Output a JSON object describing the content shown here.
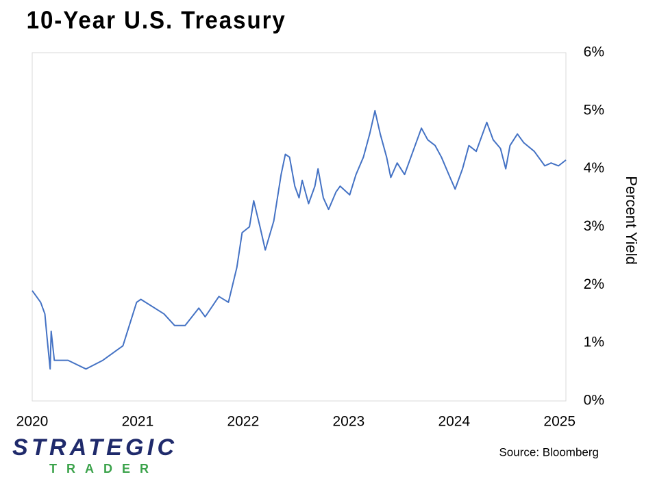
{
  "chart_data": {
    "type": "line",
    "title": "10-Year U.S. Treasury",
    "y_axis_label": "Percent Yield",
    "source": "Source: Bloomberg",
    "logo": {
      "name": "STRATEGIC",
      "tagline": "TRADER"
    },
    "xlim": [
      2020,
      2025.06
    ],
    "xticks": [
      2020,
      2021,
      2022,
      2023,
      2024,
      2025
    ],
    "ylim": [
      0,
      6
    ],
    "yticks": [
      {
        "value": 0,
        "label": "0%"
      },
      {
        "value": 1,
        "label": "1%"
      },
      {
        "value": 2,
        "label": "2%"
      },
      {
        "value": 3,
        "label": "3%"
      },
      {
        "value": 4,
        "label": "4%"
      },
      {
        "value": 5,
        "label": "5%"
      },
      {
        "value": 6,
        "label": "6%"
      }
    ],
    "grid": false,
    "y_axis_side": "right",
    "series": [
      {
        "name": "10-Year U.S. Treasury",
        "color": "#4472c4",
        "x": [
          2020.0,
          2020.02,
          2020.08,
          2020.12,
          2020.14,
          2020.17,
          2020.18,
          2020.21,
          2020.34,
          2020.51,
          2020.67,
          2020.86,
          2020.99,
          2021.03,
          2021.25,
          2021.35,
          2021.45,
          2021.58,
          2021.64,
          2021.77,
          2021.86,
          2021.94,
          2021.99,
          2022.06,
          2022.1,
          2022.16,
          2022.21,
          2022.29,
          2022.36,
          2022.4,
          2022.44,
          2022.49,
          2022.53,
          2022.56,
          2022.62,
          2022.68,
          2022.71,
          2022.76,
          2022.81,
          2022.88,
          2022.92,
          2023.01,
          2023.07,
          2023.14,
          2023.2,
          2023.25,
          2023.3,
          2023.36,
          2023.4,
          2023.46,
          2023.53,
          2023.59,
          2023.69,
          2023.75,
          2023.82,
          2023.88,
          2023.95,
          2024.01,
          2024.08,
          2024.14,
          2024.21,
          2024.31,
          2024.37,
          2024.44,
          2024.49,
          2024.53,
          2024.6,
          2024.66,
          2024.76,
          2024.86,
          2024.92,
          2024.99,
          2025.06
        ],
        "values": [
          1.9,
          1.85,
          1.7,
          1.5,
          1.1,
          0.55,
          1.2,
          0.7,
          0.7,
          0.55,
          0.7,
          0.95,
          1.7,
          1.75,
          1.5,
          1.3,
          1.3,
          1.6,
          1.45,
          1.8,
          1.7,
          2.3,
          2.9,
          3.0,
          3.45,
          3.0,
          2.6,
          3.1,
          3.9,
          4.25,
          4.2,
          3.7,
          3.5,
          3.8,
          3.4,
          3.7,
          4.0,
          3.5,
          3.3,
          3.6,
          3.7,
          3.55,
          3.9,
          4.2,
          4.6,
          5.0,
          4.6,
          4.2,
          3.85,
          4.1,
          3.9,
          4.2,
          4.7,
          4.5,
          4.4,
          4.2,
          3.9,
          3.65,
          4.0,
          4.4,
          4.3,
          4.8,
          4.5,
          4.35,
          4.0,
          4.4,
          4.6,
          4.45,
          4.3,
          4.05,
          4.1,
          4.05,
          4.15
        ]
      }
    ]
  }
}
